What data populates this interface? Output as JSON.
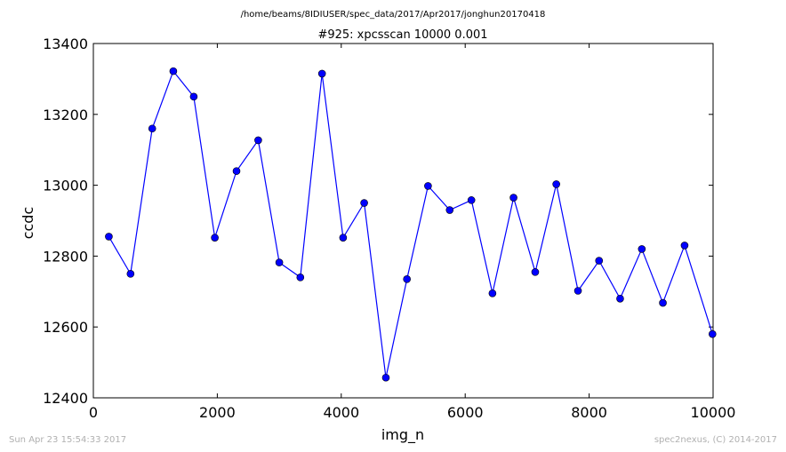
{
  "page": {
    "path_title": "/home/beams/8IDIUSER/spec_data/2017/Apr2017/jonghun20170418",
    "footer_left": "Sun Apr 23 15:54:33 2017",
    "footer_right": "spec2nexus, (C) 2014-2017"
  },
  "chart_data": {
    "type": "line",
    "title": "#925: xpcsscan 10000 0.001",
    "xlabel": "img_n",
    "ylabel": "ccdc",
    "xlim": [
      0,
      10000
    ],
    "ylim": [
      12400,
      13400
    ],
    "xticks": [
      "0",
      "2000",
      "4000",
      "6000",
      "8000",
      "10000"
    ],
    "yticks": [
      "12400",
      "12600",
      "12800",
      "13000",
      "13200",
      "13400"
    ],
    "grid": false,
    "legend": "none",
    "line_color": "#0000ff",
    "marker_color": "#0000ff",
    "series": [
      {
        "x": [
          250,
          600,
          950,
          1290,
          1620,
          1960,
          2310,
          2660,
          3000,
          3340,
          3690,
          4030,
          4370,
          4720,
          5060,
          5400,
          5750,
          6100,
          6440,
          6780,
          7130,
          7470,
          7820,
          8160,
          8500,
          8850,
          9190,
          9540,
          9990
        ],
        "y": [
          12855,
          12750,
          13160,
          13322,
          13250,
          12852,
          13040,
          13127,
          12782,
          12740,
          13315,
          12852,
          12950,
          12457,
          12735,
          12998,
          12930,
          12958,
          12695,
          12965,
          12755,
          13003,
          12702,
          12787,
          12680,
          12820,
          12668,
          12830,
          12580
        ]
      }
    ]
  }
}
